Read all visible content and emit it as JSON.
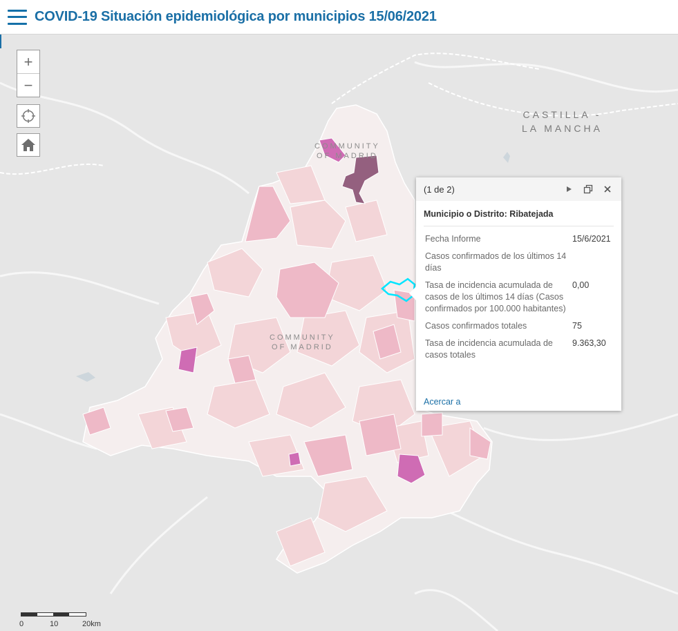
{
  "header": {
    "title": "COVID-19 Situación epidemiológica por municipios 15/06/2021"
  },
  "map_controls": {
    "zoom_in": "+",
    "zoom_out": "−"
  },
  "map_labels": {
    "region_east": [
      "CASTILLA -",
      "LA MANCHA"
    ],
    "community_north": [
      "COMMUNITY",
      "OF MADRID"
    ],
    "community_center": [
      "COMMUNITY",
      "OF MADRID"
    ]
  },
  "popup": {
    "count": "(1 de 2)",
    "title": "Municipio o Distrito: Ribatejada",
    "fields": [
      {
        "label": "Fecha Informe",
        "value": "15/6/2021"
      },
      {
        "label": "Casos confirmados de los últimos 14 días",
        "value": ""
      },
      {
        "label": "Tasa de incidencia acumulada de casos de los últimos 14 días (Casos confirmados por 100.000 habitantes)",
        "value": "0,00"
      },
      {
        "label": "Casos confirmados totales",
        "value": "75"
      },
      {
        "label": "Tasa de incidencia acumulada de casos totales",
        "value": "9.363,30"
      }
    ],
    "zoom_link": "Acercar a"
  },
  "scale": {
    "labels": [
      "0",
      "10",
      "20km"
    ]
  },
  "colors": {
    "accent": "#1a6fa6",
    "highlight_outline": "#00e5ff",
    "choropleth": [
      "#f5eeee",
      "#f3d5d8",
      "#eeb9c7",
      "#e59ac0",
      "#cf6cb4",
      "#94607f"
    ]
  }
}
